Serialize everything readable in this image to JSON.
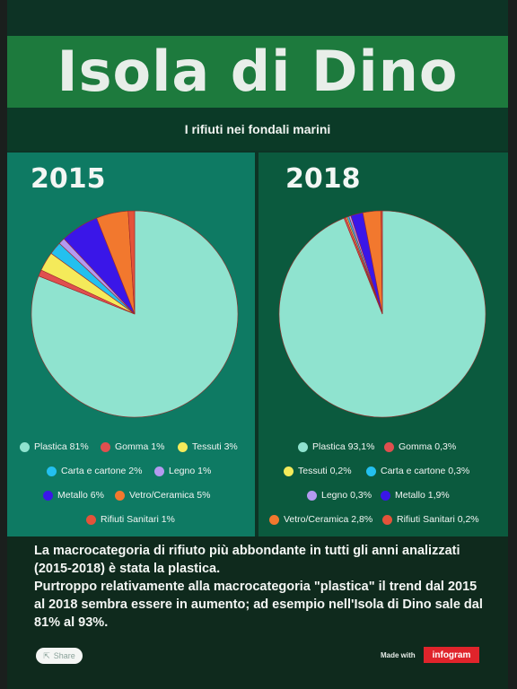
{
  "header": {
    "title": "Isola di Dino",
    "subtitle": "I rifiuti nei fondali marini"
  },
  "chart_data": [
    {
      "type": "pie",
      "title": "2015",
      "slices": [
        {
          "label": "Plastica 81%",
          "value": 81,
          "color": "#8fe3cf"
        },
        {
          "label": "Gomma 1%",
          "value": 1,
          "color": "#e04f4f"
        },
        {
          "label": "Tessuti 3%",
          "value": 3,
          "color": "#f4ea5a"
        },
        {
          "label": "Carta e cartone 2%",
          "value": 2,
          "color": "#23c0ef"
        },
        {
          "label": "Legno 1%",
          "value": 1,
          "color": "#b49af0"
        },
        {
          "label": "Metallo 6%",
          "value": 6,
          "color": "#3a16e8"
        },
        {
          "label": "Vetro/Ceramica 5%",
          "value": 5,
          "color": "#f2782e"
        },
        {
          "label": "Rifiuti Sanitari 1%",
          "value": 1,
          "color": "#e4533a"
        }
      ]
    },
    {
      "type": "pie",
      "title": "2018",
      "slices": [
        {
          "label": "Plastica 93,1%",
          "value": 93.1,
          "color": "#8fe3cf"
        },
        {
          "label": "Gomma 0,3%",
          "value": 0.3,
          "color": "#e04f4f"
        },
        {
          "label": "Tessuti 0,2%",
          "value": 0.2,
          "color": "#f4ea5a"
        },
        {
          "label": "Carta e cartone 0,3%",
          "value": 0.3,
          "color": "#23c0ef"
        },
        {
          "label": "Legno 0,3%",
          "value": 0.3,
          "color": "#b49af0"
        },
        {
          "label": "Metallo 1,9%",
          "value": 1.9,
          "color": "#3a16e8"
        },
        {
          "label": "Vetro/Ceramica 2,8%",
          "value": 2.8,
          "color": "#f2782e"
        },
        {
          "label": "Rifiuti Sanitari 0,2%",
          "value": 0.2,
          "color": "#e4533a"
        }
      ]
    }
  ],
  "note": {
    "line1": "La macrocategoria di rifiuto più abbondante in tutti gli anni analizzati (2015-2018) è stata la plastica.",
    "line2": "Purtroppo relativamente alla macrocategoria \"plastica\" il trend dal 2015 al 2018 sembra essere in aumento; ad esempio nell'Isola di Dino sale dal 81% al 93%."
  },
  "footer": {
    "share_label": "Share",
    "made_with": "Made with",
    "brand": "infogram"
  }
}
